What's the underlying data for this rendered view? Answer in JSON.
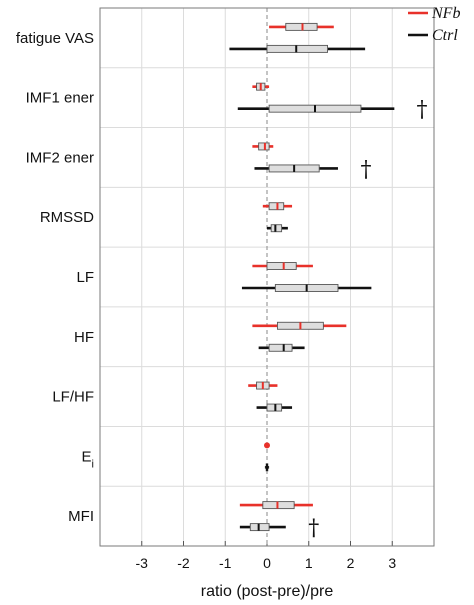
{
  "chart_data": {
    "type": "boxplot",
    "orientation": "horizontal",
    "xlabel": "ratio (post-pre)/pre",
    "xlim": [
      -4,
      4
    ],
    "xticks": [
      -3,
      -2,
      -1,
      0,
      1,
      2,
      3
    ],
    "reference_line": 0,
    "grid": true,
    "legend_position": "top-right",
    "series": [
      {
        "name": "NFb",
        "color": "#e8312a"
      },
      {
        "name": "Ctrl",
        "color": "#111111"
      }
    ],
    "categories": [
      {
        "label": "fatigue VAS",
        "label_sub": "",
        "NFb": {
          "min": 0.05,
          "q1": 0.45,
          "median": 0.85,
          "q3": 1.2,
          "max": 1.6
        },
        "Ctrl": {
          "min": -0.9,
          "q1": 0.0,
          "median": 0.7,
          "q3": 1.45,
          "max": 2.35
        },
        "marker": ""
      },
      {
        "label": "IMF1 ener",
        "label_sub": "",
        "NFb": {
          "min": -0.35,
          "q1": -0.25,
          "median": -0.15,
          "q3": -0.05,
          "max": 0.05
        },
        "Ctrl": {
          "min": -0.7,
          "q1": 0.05,
          "median": 1.15,
          "q3": 2.25,
          "max": 3.05
        },
        "marker": "†"
      },
      {
        "label": "IMF2 ener",
        "label_sub": "",
        "NFb": {
          "min": -0.35,
          "q1": -0.2,
          "median": -0.05,
          "q3": 0.05,
          "max": 0.15
        },
        "Ctrl": {
          "min": -0.3,
          "q1": 0.05,
          "median": 0.65,
          "q3": 1.25,
          "max": 1.7
        },
        "marker": "†"
      },
      {
        "label": "RMSSD",
        "label_sub": "",
        "NFb": {
          "min": -0.1,
          "q1": 0.05,
          "median": 0.25,
          "q3": 0.4,
          "max": 0.6
        },
        "Ctrl": {
          "min": 0.0,
          "q1": 0.1,
          "median": 0.2,
          "q3": 0.35,
          "max": 0.5
        },
        "marker": ""
      },
      {
        "label": "LF",
        "label_sub": "",
        "NFb": {
          "min": -0.35,
          "q1": 0.0,
          "median": 0.4,
          "q3": 0.7,
          "max": 1.1
        },
        "Ctrl": {
          "min": -0.6,
          "q1": 0.2,
          "median": 0.95,
          "q3": 1.7,
          "max": 2.5
        },
        "marker": ""
      },
      {
        "label": "HF",
        "label_sub": "",
        "NFb": {
          "min": -0.35,
          "q1": 0.25,
          "median": 0.8,
          "q3": 1.35,
          "max": 1.9
        },
        "Ctrl": {
          "min": -0.2,
          "q1": 0.05,
          "median": 0.4,
          "q3": 0.6,
          "max": 0.9
        },
        "marker": ""
      },
      {
        "label": "LF/HF",
        "label_sub": "",
        "NFb": {
          "min": -0.45,
          "q1": -0.25,
          "median": -0.1,
          "q3": 0.05,
          "max": 0.25
        },
        "Ctrl": {
          "min": -0.25,
          "q1": 0.0,
          "median": 0.2,
          "q3": 0.35,
          "max": 0.6
        },
        "marker": ""
      },
      {
        "label": "E",
        "label_sub": "i",
        "NFb": {
          "min": 0.0,
          "q1": 0.0,
          "median": 0.0,
          "q3": 0.0,
          "max": 0.0
        },
        "Ctrl": {
          "min": -0.05,
          "q1": -0.02,
          "median": 0.0,
          "q3": 0.02,
          "max": 0.05
        },
        "marker": ""
      },
      {
        "label": "MFI",
        "label_sub": "",
        "NFb": {
          "min": -0.65,
          "q1": -0.1,
          "median": 0.25,
          "q3": 0.65,
          "max": 1.1
        },
        "Ctrl": {
          "min": -0.65,
          "q1": -0.4,
          "median": -0.2,
          "q3": 0.05,
          "max": 0.45
        },
        "marker": "†"
      }
    ]
  }
}
